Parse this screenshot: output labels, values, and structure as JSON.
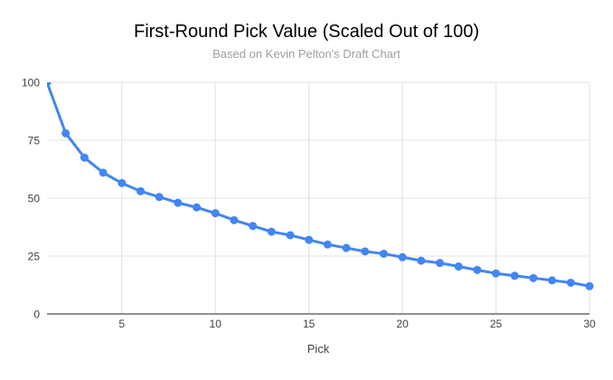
{
  "chart_data": {
    "type": "line",
    "title": "First-Round Pick Value (Scaled Out of 100)",
    "subtitle": "Based on Kevin Pelton's Draft Chart",
    "xlabel": "Pick",
    "ylabel": "",
    "x": [
      1,
      2,
      3,
      4,
      5,
      6,
      7,
      8,
      9,
      10,
      11,
      12,
      13,
      14,
      15,
      16,
      17,
      18,
      19,
      20,
      21,
      22,
      23,
      24,
      25,
      26,
      27,
      28,
      29,
      30
    ],
    "values": [
      100,
      78,
      67.5,
      61,
      56.5,
      53,
      50.5,
      48,
      46,
      43.5,
      40.5,
      38,
      35.5,
      34,
      32,
      30,
      28.5,
      27,
      26,
      24.5,
      23,
      22,
      20.5,
      19,
      17.5,
      16.5,
      15.5,
      14.5,
      13.5,
      12
    ],
    "xlim": [
      1,
      30
    ],
    "ylim": [
      0,
      100
    ],
    "xticks": [
      5,
      10,
      15,
      20,
      25,
      30
    ],
    "yticks": [
      0,
      25,
      50,
      75,
      100
    ],
    "grid": true,
    "legend": false,
    "marker": "circle",
    "colors": {
      "line": "#4285f4",
      "grid": "#e0e0e0",
      "axis": "#212121",
      "tick_label": "#424242",
      "title": "#000000",
      "subtitle": "#9e9e9e",
      "background": "#ffffff"
    }
  }
}
